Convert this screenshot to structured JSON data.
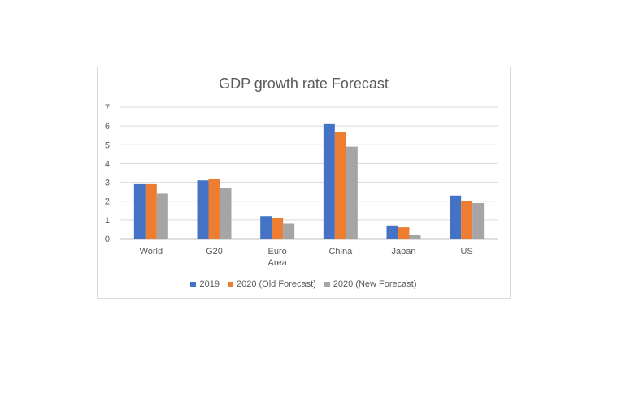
{
  "chart_data": {
    "type": "bar",
    "title": "GDP growth rate Forecast",
    "categories": [
      "World",
      "G20",
      "Euro Area",
      "China",
      "Japan",
      "US"
    ],
    "category_lines": [
      [
        "World"
      ],
      [
        "G20"
      ],
      [
        "Euro",
        "Area"
      ],
      [
        "China"
      ],
      [
        "Japan"
      ],
      [
        "US"
      ]
    ],
    "series": [
      {
        "name": "2019",
        "color": "#4472c4",
        "values": [
          2.9,
          3.1,
          1.2,
          6.1,
          0.7,
          2.3
        ]
      },
      {
        "name": "2020 (Old Forecast)",
        "color": "#ed7d31",
        "values": [
          2.9,
          3.2,
          1.1,
          5.7,
          0.6,
          2.0
        ]
      },
      {
        "name": "2020 (New Forecast)",
        "color": "#a5a5a5",
        "values": [
          2.4,
          2.7,
          0.8,
          4.9,
          0.2,
          1.9
        ]
      }
    ],
    "ylim": [
      0,
      7
    ],
    "yticks": [
      "0",
      "1",
      "2",
      "3",
      "4",
      "5",
      "6",
      "7"
    ],
    "grid": true,
    "legend_position": "bottom",
    "xlabel": "",
    "ylabel": ""
  }
}
